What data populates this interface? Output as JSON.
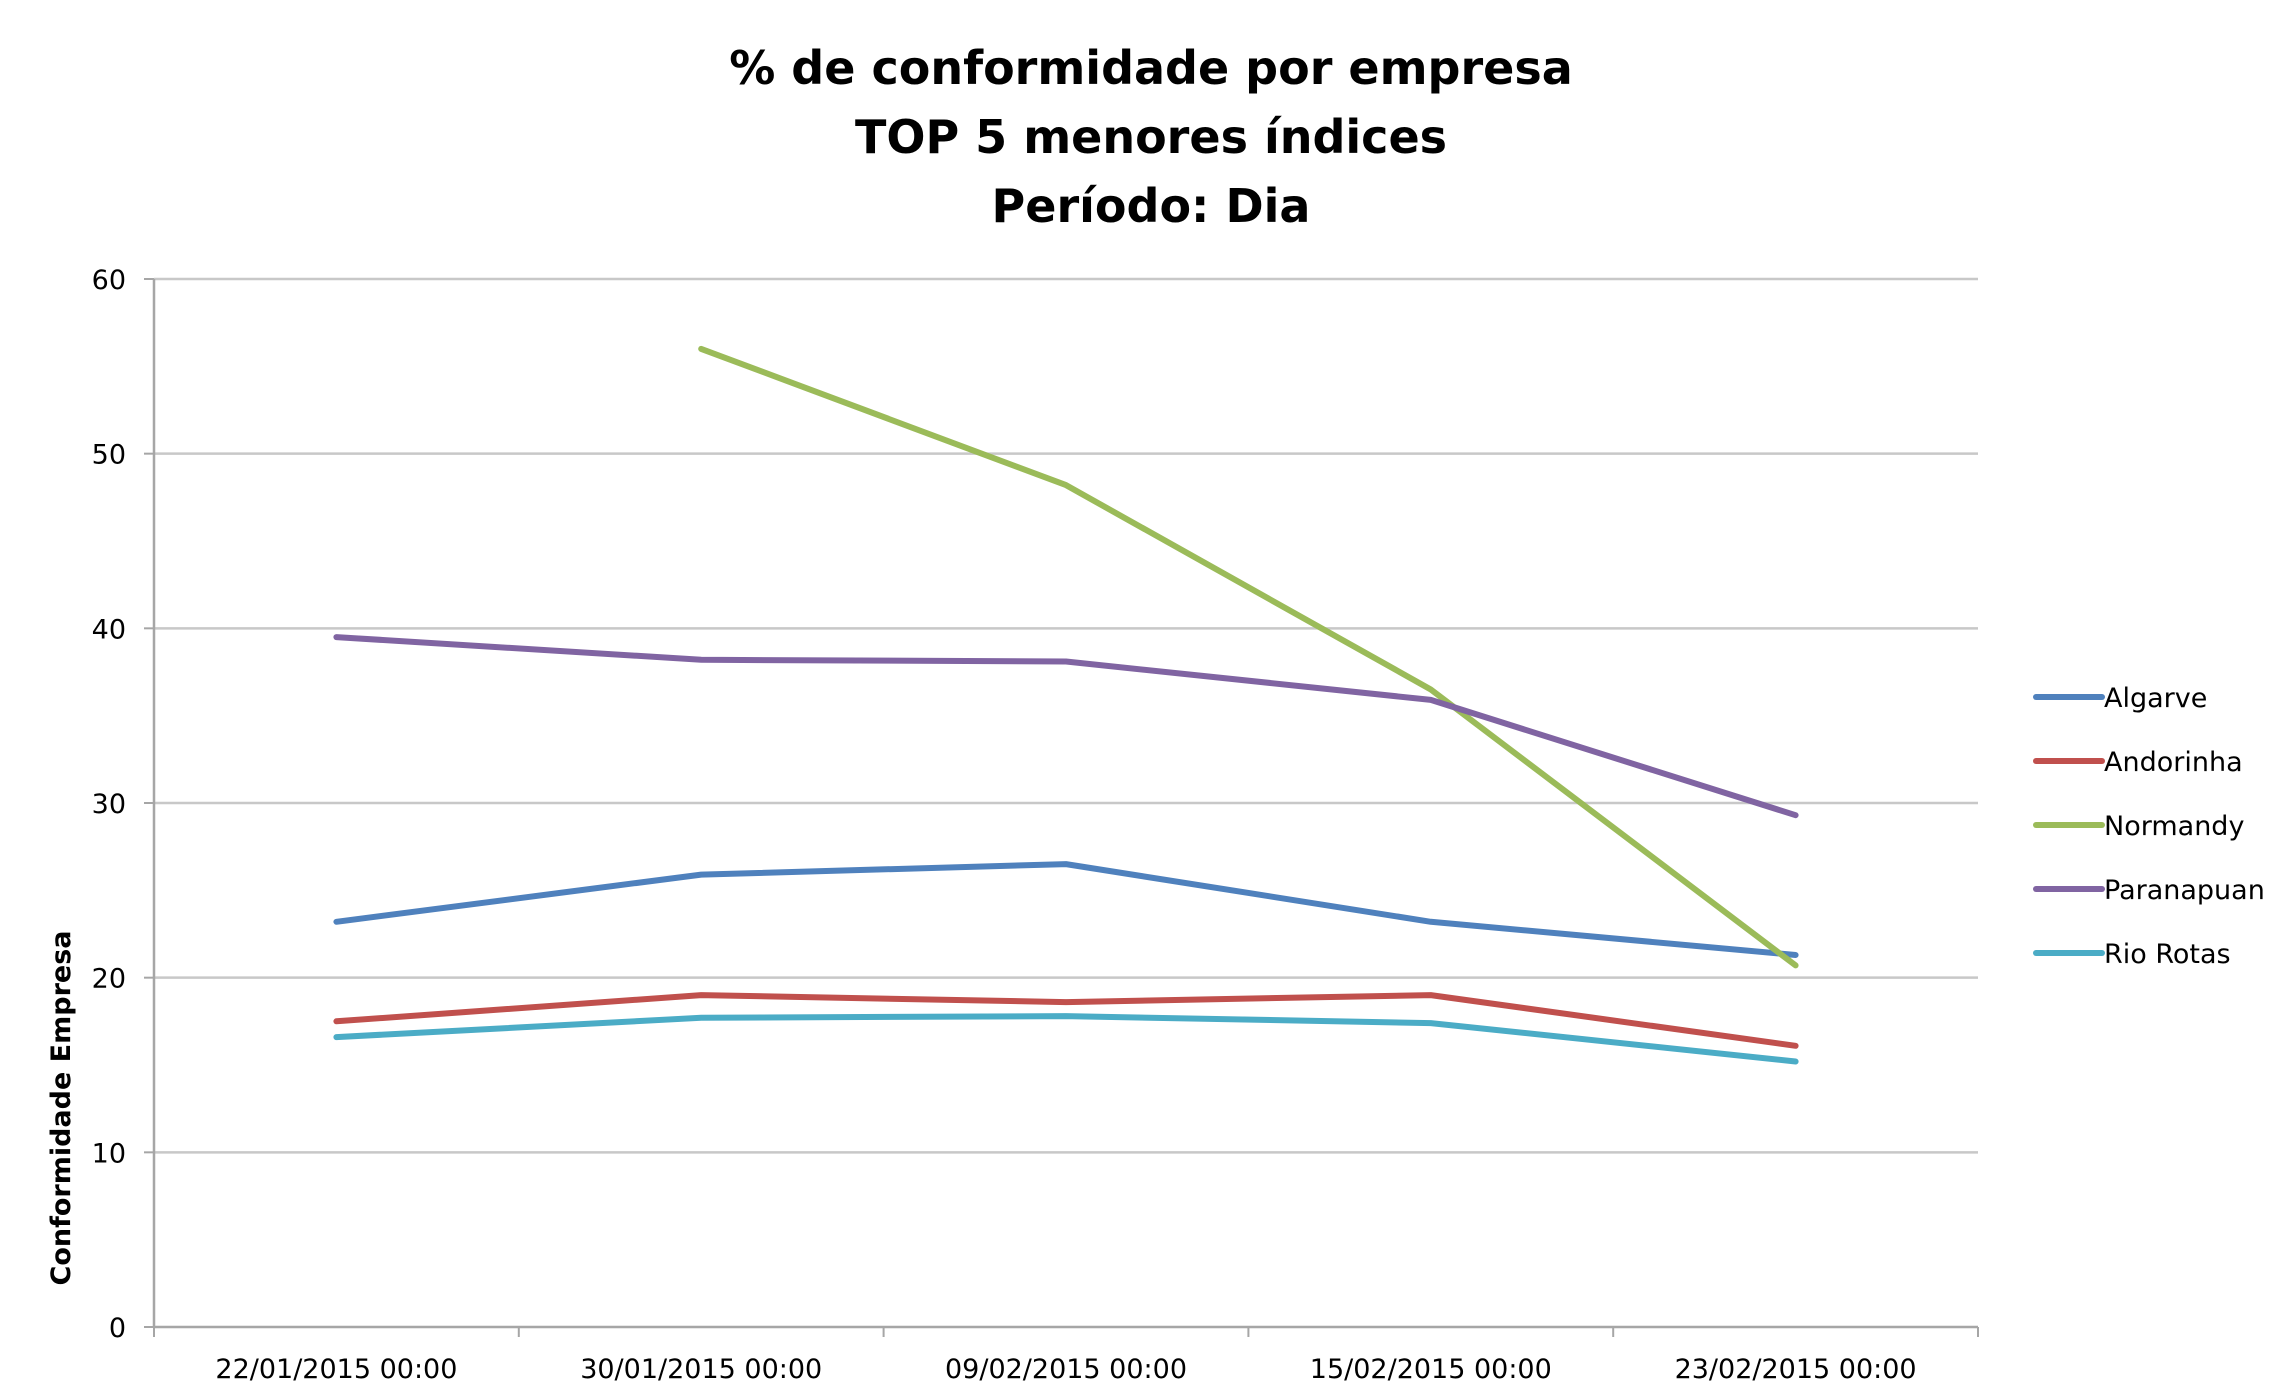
{
  "chart_data": {
    "type": "line",
    "title": [
      "% de conformidade por empresa",
      "TOP 5 menores índices",
      "Período: Dia"
    ],
    "xlabel": "",
    "ylabel": "Conformidade Empresa",
    "x": [
      "22/01/2015 00:00",
      "30/01/2015 00:00",
      "09/02/2015 00:00",
      "15/02/2015 00:00",
      "23/02/2015 00:00"
    ],
    "ylim": [
      0,
      60
    ],
    "yticks": [
      0,
      10,
      20,
      30,
      40,
      50,
      60
    ],
    "grid": true,
    "legend_position": "right",
    "series": [
      {
        "name": "Algarve",
        "color": "#4f81bd",
        "values": [
          23.2,
          25.9,
          26.5,
          23.2,
          21.3
        ]
      },
      {
        "name": "Andorinha",
        "color": "#c0504d",
        "values": [
          17.5,
          19.0,
          18.6,
          19.0,
          16.1
        ]
      },
      {
        "name": "Normandy",
        "color": "#9bbb59",
        "values": [
          null,
          56.0,
          48.2,
          36.5,
          20.7
        ]
      },
      {
        "name": "Paranapuan",
        "color": "#8064a2",
        "values": [
          39.5,
          38.2,
          38.1,
          35.9,
          29.3
        ]
      },
      {
        "name": "Rio Rotas",
        "color": "#4bacc6",
        "values": [
          16.6,
          17.7,
          17.8,
          17.4,
          15.2
        ]
      }
    ]
  }
}
